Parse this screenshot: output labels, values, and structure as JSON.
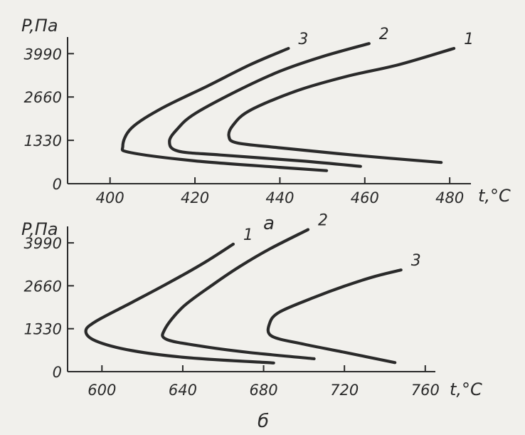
{
  "chart_data": [
    {
      "type": "line",
      "panel_label": "а",
      "ylabel": "P,Па",
      "xlabel": "t,°C",
      "xlim": [
        390,
        485
      ],
      "ylim": [
        0,
        4500
      ],
      "xticks": [
        400,
        420,
        440,
        460,
        480
      ],
      "yticks": [
        0,
        1330,
        2660,
        3990
      ],
      "series": [
        {
          "name": "1",
          "points": [
            [
              481,
              4150
            ],
            [
              468,
              3650
            ],
            [
              456,
              3300
            ],
            [
              444,
              2850
            ],
            [
              433,
              2250
            ],
            [
              429,
              1800
            ],
            [
              428,
              1450
            ],
            [
              430,
              1250
            ],
            [
              440,
              1100
            ],
            [
              458,
              870
            ],
            [
              478,
              650
            ]
          ]
        },
        {
          "name": "2",
          "points": [
            [
              461,
              4300
            ],
            [
              450,
              3900
            ],
            [
              440,
              3450
            ],
            [
              430,
              2850
            ],
            [
              420,
              2150
            ],
            [
              416,
              1700
            ],
            [
              414,
              1300
            ],
            [
              416,
              1000
            ],
            [
              426,
              880
            ],
            [
              445,
              700
            ],
            [
              459,
              530
            ]
          ]
        },
        {
          "name": "3",
          "points": [
            [
              442,
              4150
            ],
            [
              433,
              3650
            ],
            [
              423,
              3000
            ],
            [
              412,
              2300
            ],
            [
              405,
              1700
            ],
            [
              403,
              1150
            ],
            [
              405,
              950
            ],
            [
              420,
              700
            ],
            [
              440,
              500
            ],
            [
              451,
              400
            ]
          ]
        }
      ]
    },
    {
      "type": "line",
      "panel_label": "б",
      "ylabel": "P,Па",
      "xlabel": "t,°C",
      "xlim": [
        583,
        765
      ],
      "ylim": [
        0,
        4500
      ],
      "xticks": [
        600,
        640,
        680,
        720,
        760
      ],
      "yticks": [
        0,
        1330,
        2660,
        3990
      ],
      "series": [
        {
          "name": "1",
          "points": [
            [
              665,
              3950
            ],
            [
              650,
              3350
            ],
            [
              633,
              2750
            ],
            [
              615,
              2150
            ],
            [
              597,
              1560
            ],
            [
              592,
              1250
            ],
            [
              597,
              950
            ],
            [
              615,
              650
            ],
            [
              643,
              430
            ],
            [
              685,
              270
            ]
          ]
        },
        {
          "name": "2",
          "points": [
            [
              702,
              4400
            ],
            [
              683,
              3800
            ],
            [
              668,
              3250
            ],
            [
              655,
              2700
            ],
            [
              640,
              2000
            ],
            [
              631,
              1300
            ],
            [
              632,
              1000
            ],
            [
              648,
              800
            ],
            [
              672,
              600
            ],
            [
              705,
              400
            ]
          ]
        },
        {
          "name": "3",
          "points": [
            [
              748,
              3150
            ],
            [
              735,
              2950
            ],
            [
              720,
              2650
            ],
            [
              705,
              2300
            ],
            [
              688,
              1850
            ],
            [
              683,
              1500
            ],
            [
              684,
              1100
            ],
            [
              700,
              850
            ],
            [
              720,
              600
            ],
            [
              745,
              280
            ]
          ]
        }
      ]
    }
  ]
}
